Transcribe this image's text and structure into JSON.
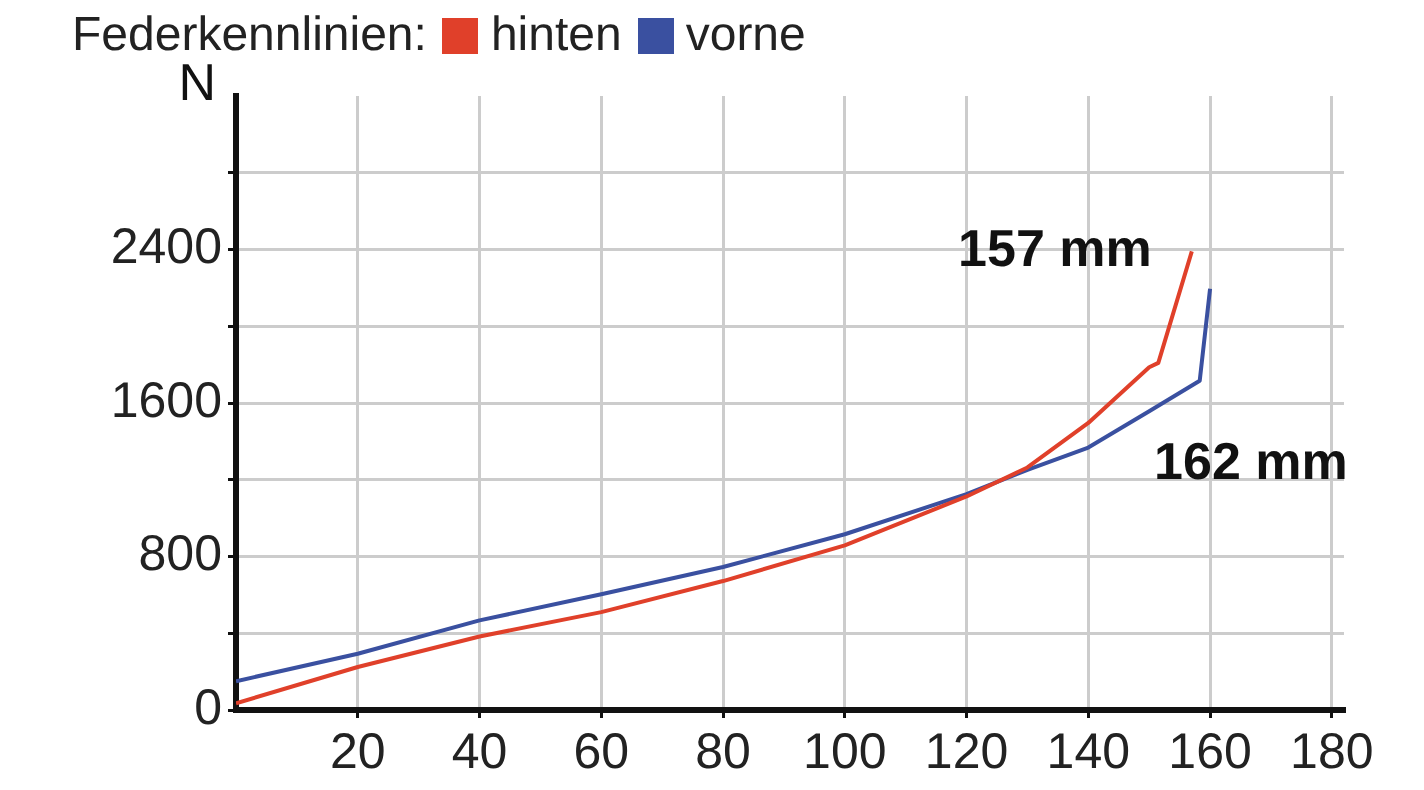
{
  "chart_data": {
    "type": "line",
    "legend_title": "Federkennlinien:",
    "legend": "top left",
    "ylabel": "N",
    "grid": true,
    "marker": "none",
    "line_style": "solid",
    "xlim": [
      0,
      182
    ],
    "xticks": [
      20,
      40,
      60,
      80,
      100,
      120,
      140,
      160,
      180
    ],
    "ylim": [
      0,
      3200
    ],
    "yticks": [
      0,
      {
        "value": 400,
        "label": null
      },
      800,
      {
        "value": 1200,
        "label": null
      },
      1600,
      {
        "value": 2000,
        "label": null
      },
      2400,
      {
        "value": 2800,
        "label": null
      }
    ],
    "series": [
      {
        "name": "hinten",
        "color": "#e0402a",
        "x": [
          0,
          20,
          40,
          60,
          80,
          100,
          120,
          130,
          140,
          150,
          151.5,
          157
        ],
        "values": [
          35,
          224,
          383,
          510,
          672,
          858,
          1113,
          1264,
          1496,
          1786,
          1809,
          2390
        ]
      },
      {
        "name": "vorne",
        "color": "#3a50a0",
        "x": [
          0,
          20,
          40,
          60,
          80,
          100,
          120,
          130,
          140,
          150,
          158.3,
          160
        ],
        "values": [
          150,
          293,
          467,
          603,
          745,
          916,
          1125,
          1252,
          1368,
          1557,
          1716,
          2195
        ]
      }
    ],
    "annotations": [
      {
        "text": "157 mm",
        "x": 157,
        "y": 2390
      },
      {
        "text": "162 mm",
        "x": 160,
        "y": 1716
      }
    ]
  }
}
